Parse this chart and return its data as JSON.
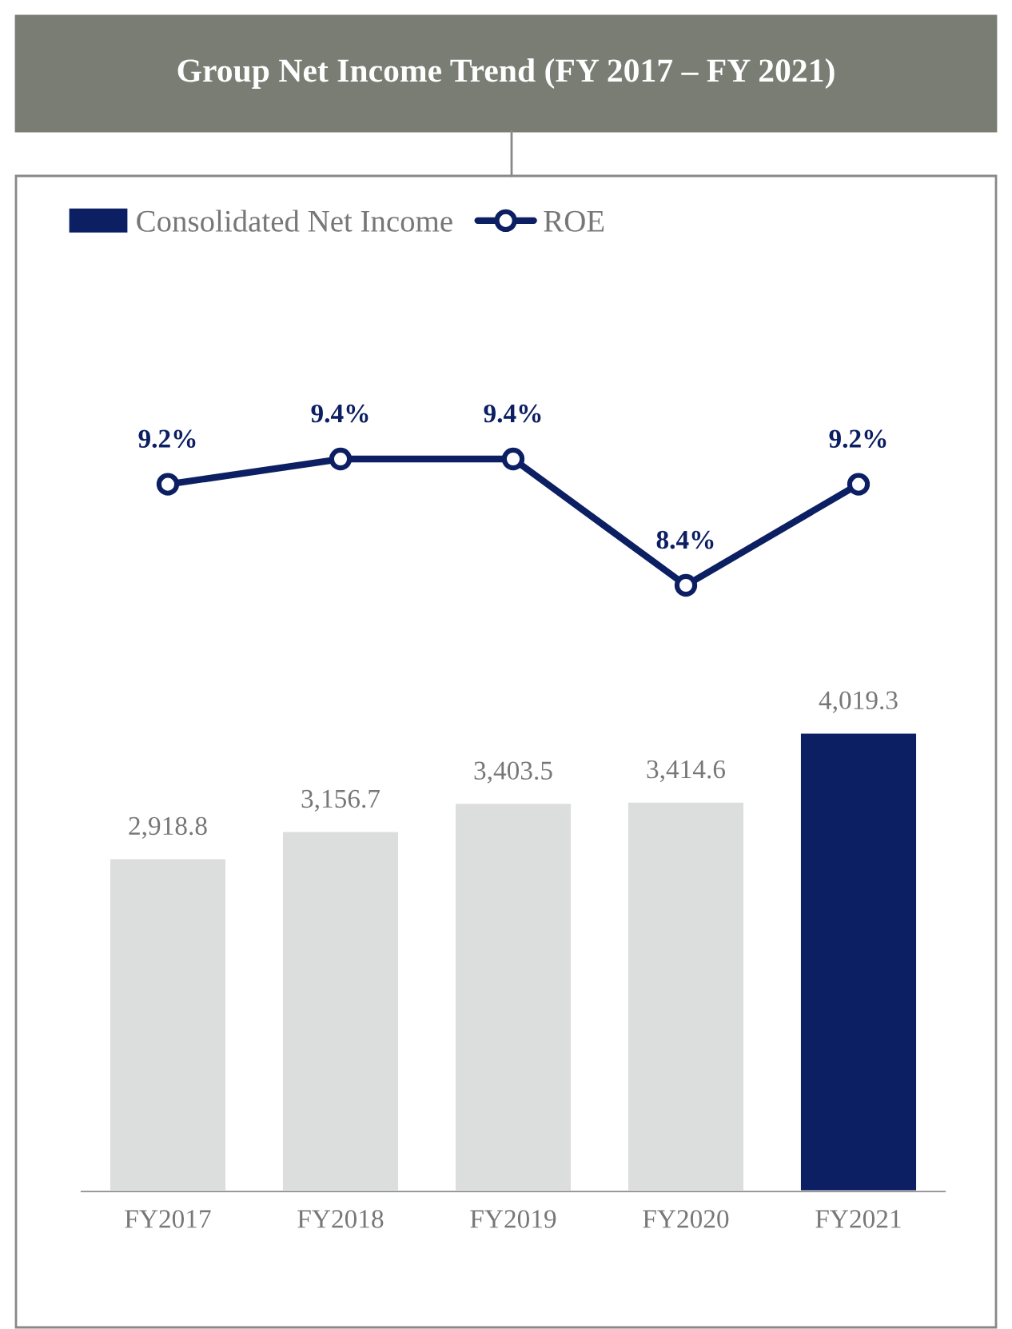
{
  "chart_data": [
    {
      "type": "line",
      "title": "Group Net Income Trend (FY 2017 – FY 2021)",
      "categories": [
        null,
        null,
        null,
        null,
        null
      ],
      "series": [
        {
          "name": "ROE",
          "color": "#0c1f63",
          "values": [
            9.2,
            9.4,
            9.4,
            8.4,
            9.2
          ],
          "value_labels": [
            "9.2%",
            "9.4%",
            "9.4%",
            "8.4%",
            "9.2%"
          ]
        }
      ],
      "marker": "circle",
      "tick_labels": false,
      "legend": "top left"
    },
    {
      "type": "bar",
      "categories": [
        "FY2017",
        "FY2018",
        "FY2019",
        "FY2020",
        "FY2021"
      ],
      "series": [
        {
          "name": "Consolidated Net Income",
          "color": "#0c1f63",
          "colors": [
            "#dcdddd",
            "#dcdddd",
            "#dcdddd",
            "#dcdddd",
            "#0c1f63"
          ],
          "values": [
            2918.8,
            3156.7,
            3403.5,
            3414.6,
            4019.3
          ],
          "value_labels": [
            "2,918.8",
            "3,156.7",
            "3,403.5",
            "3,414.6",
            "4,019.3"
          ]
        }
      ],
      "tick_labels": "x",
      "legend": "top left"
    }
  ]
}
